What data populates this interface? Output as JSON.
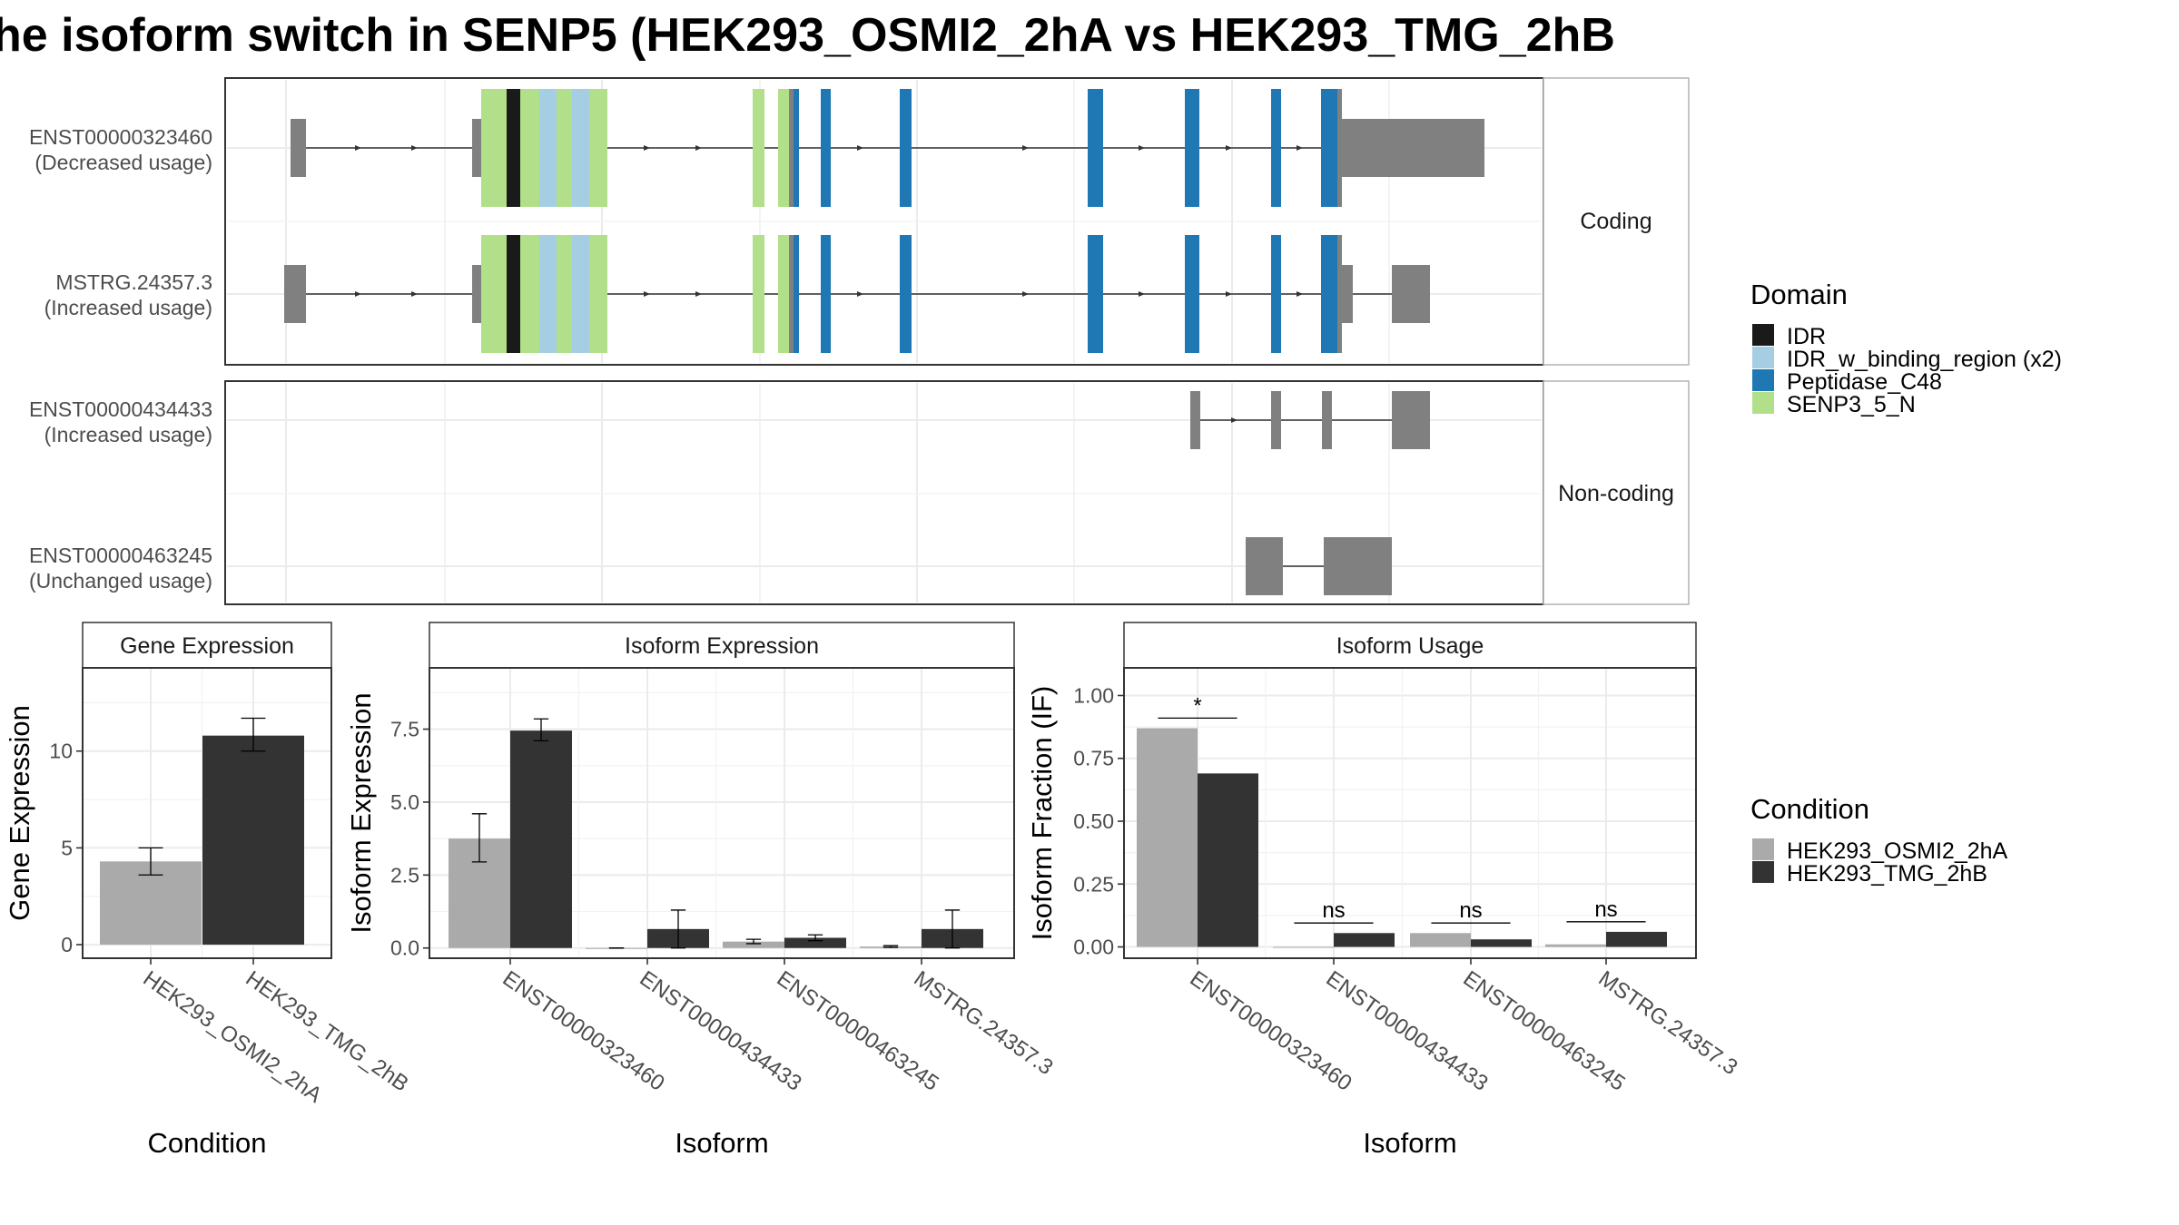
{
  "title": "he isoform switch in SENP5 (HEK293_OSMI2_2hA vs HEK293_TMG_2hB",
  "colors": {
    "IDR": "#1a1a1a",
    "IDR_w_binding_region": "#a6cee3",
    "Peptidase_C48": "#1f78b4",
    "SENP3_5_N": "#b2df8a",
    "noncoding_exon": "#808080",
    "cond_a": "#aaaaaa",
    "cond_b": "#333333"
  },
  "transcripts": {
    "facets": [
      "Coding",
      "Non-coding"
    ],
    "tx": [
      {
        "id": "ENST00000323460",
        "usage": "(Decreased usage)"
      },
      {
        "id": "MSTRG.24357.3",
        "usage": "(Increased usage)"
      },
      {
        "id": "ENST00000434433",
        "usage": "(Increased usage)"
      },
      {
        "id": "ENST00000463245",
        "usage": "(Unchanged usage)"
      }
    ]
  },
  "legend_domain": {
    "title": "Domain",
    "items": [
      "IDR",
      "IDR_w_binding_region (x2)",
      "Peptidase_C48",
      "SENP3_5_N"
    ]
  },
  "legend_condition": {
    "title": "Condition",
    "items": [
      "HEK293_OSMI2_2hA",
      "HEK293_TMG_2hB"
    ]
  },
  "chart_data": [
    {
      "type": "bar",
      "title": "Gene Expression",
      "xlabel": "Condition",
      "ylabel": "Gene Expression",
      "categories": [
        "HEK293_OSMI2_2hA",
        "HEK293_TMG_2hB"
      ],
      "values": [
        4.3,
        10.8
      ],
      "error_low": [
        3.6,
        10.0
      ],
      "error_high": [
        5.0,
        11.7
      ],
      "yticks": [
        "0",
        "5",
        "10"
      ],
      "ylim": [
        -0.7,
        14.3
      ]
    },
    {
      "type": "bar",
      "title": "Isoform Expression",
      "xlabel": "Isoform",
      "ylabel": "Isoform Expression",
      "categories": [
        "ENST00000323460",
        "ENST00000434433",
        "ENST00000463245",
        "MSTRG.24357.3"
      ],
      "series": [
        {
          "name": "HEK293_OSMI2_2hA",
          "values": [
            3.75,
            0.0,
            0.22,
            0.05
          ],
          "error_low": [
            2.95,
            0.0,
            0.15,
            0.02
          ],
          "error_high": [
            4.6,
            0.0,
            0.3,
            0.08
          ]
        },
        {
          "name": "HEK293_TMG_2hB",
          "values": [
            7.45,
            0.65,
            0.35,
            0.65
          ],
          "error_low": [
            7.1,
            0.0,
            0.25,
            0.0
          ],
          "error_high": [
            7.85,
            1.3,
            0.45,
            1.3
          ]
        }
      ],
      "yticks": [
        "0.0",
        "2.5",
        "5.0",
        "7.5"
      ],
      "ylim": [
        -0.35,
        9.6
      ]
    },
    {
      "type": "bar",
      "title": "Isoform Usage",
      "xlabel": "Isoform",
      "ylabel": "Isoform Fraction (IF)",
      "categories": [
        "ENST00000323460",
        "ENST00000434433",
        "ENST00000463245",
        "MSTRG.24357.3"
      ],
      "series": [
        {
          "name": "HEK293_OSMI2_2hA",
          "values": [
            0.87,
            0.0,
            0.055,
            0.01
          ]
        },
        {
          "name": "HEK293_TMG_2hB",
          "values": [
            0.69,
            0.055,
            0.03,
            0.06
          ]
        }
      ],
      "significance": [
        "*",
        "ns",
        "ns",
        "ns"
      ],
      "yticks": [
        "0.00",
        "0.25",
        "0.50",
        "0.75",
        "1.00"
      ],
      "ylim": [
        -0.045,
        1.11
      ]
    }
  ]
}
